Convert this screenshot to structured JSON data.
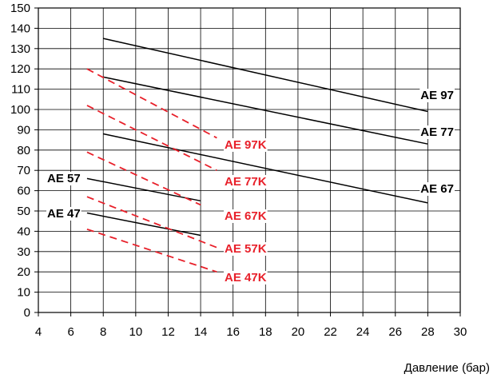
{
  "chart_data": {
    "type": "line",
    "title": "",
    "xlabel": "Давление (бар)",
    "ylabel": "",
    "xlim": [
      4,
      30
    ],
    "ylim": [
      0,
      150
    ],
    "xticks": [
      "4",
      "6",
      "8",
      "10",
      "12",
      "14",
      "16",
      "18",
      "20",
      "22",
      "24",
      "26",
      "28",
      "30"
    ],
    "yticks": [
      "0",
      "10",
      "20",
      "30",
      "40",
      "50",
      "60",
      "70",
      "80",
      "90",
      "100",
      "110",
      "120",
      "130",
      "140",
      "150"
    ],
    "grid": true,
    "series": [
      {
        "name": "AE 97",
        "style": "solid",
        "color": "#000000",
        "x": [
          8,
          28
        ],
        "y": [
          135,
          99
        ]
      },
      {
        "name": "AE 77",
        "style": "solid",
        "color": "#000000",
        "x": [
          8,
          28
        ],
        "y": [
          116,
          83
        ]
      },
      {
        "name": "AE 67",
        "style": "solid",
        "color": "#000000",
        "x": [
          8,
          28
        ],
        "y": [
          88,
          54
        ]
      },
      {
        "name": "AE 57",
        "style": "solid",
        "color": "#000000",
        "x": [
          7,
          14
        ],
        "y": [
          66,
          55
        ]
      },
      {
        "name": "AE 47",
        "style": "solid",
        "color": "#000000",
        "x": [
          7,
          14
        ],
        "y": [
          49,
          38
        ]
      },
      {
        "name": "AE 97K",
        "style": "dashed",
        "color": "#e8202a",
        "x": [
          7,
          15
        ],
        "y": [
          120,
          86
        ]
      },
      {
        "name": "AE 77K",
        "style": "dashed",
        "color": "#e8202a",
        "x": [
          7,
          15
        ],
        "y": [
          102,
          70
        ]
      },
      {
        "name": "AE 67K",
        "style": "dashed",
        "color": "#e8202a",
        "x": [
          7,
          14
        ],
        "y": [
          79,
          53
        ]
      },
      {
        "name": "AE 57K",
        "style": "dashed",
        "color": "#e8202a",
        "x": [
          7,
          15
        ],
        "y": [
          57,
          32
        ]
      },
      {
        "name": "AE 47K",
        "style": "dashed",
        "color": "#e8202a",
        "x": [
          7,
          15
        ],
        "y": [
          41,
          20
        ]
      }
    ]
  }
}
